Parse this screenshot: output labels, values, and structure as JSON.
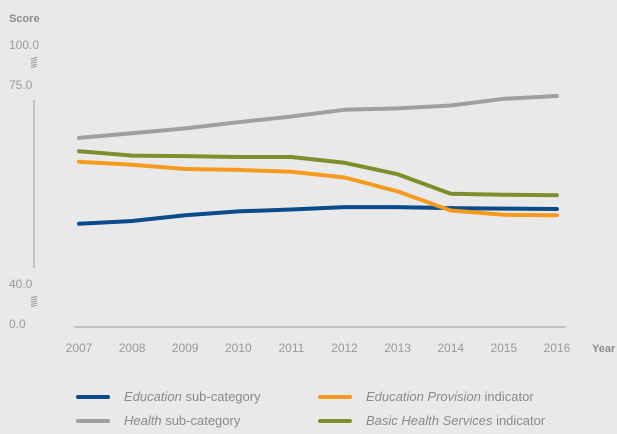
{
  "chart_data": {
    "type": "line",
    "title": "",
    "xlabel": "Year",
    "ylabel": "Score",
    "x": [
      "2007",
      "2008",
      "2009",
      "2010",
      "2011",
      "2012",
      "2013",
      "2014",
      "2015",
      "2016"
    ],
    "y_ticks": [
      "100.0",
      "75.0",
      "40.0",
      "0.0"
    ],
    "y_axis_break": true,
    "ylim_visible": [
      40,
      75
    ],
    "grid": false,
    "legend_position": "bottom",
    "series": [
      {
        "name_em": "Education",
        "name_rest": " sub-category",
        "color": "#0b4a8b",
        "values": [
          48.0,
          48.6,
          49.8,
          50.6,
          51.0,
          51.5,
          51.5,
          51.3,
          51.2,
          51.1
        ]
      },
      {
        "name_em": "Health",
        "name_rest": " sub-category",
        "color": "#a0a0a0",
        "values": [
          66.0,
          67.0,
          68.0,
          69.3,
          70.5,
          71.9,
          72.2,
          72.8,
          74.2,
          74.8
        ]
      },
      {
        "name_em": "Education Provision",
        "name_rest": " indicator",
        "color": "#f49a1e",
        "values": [
          61.0,
          60.4,
          59.5,
          59.3,
          58.9,
          57.7,
          54.8,
          50.8,
          49.9,
          49.8
        ]
      },
      {
        "name_em": "Basic Health Services",
        "name_rest": " indicator",
        "color": "#7b8f2c",
        "values": [
          63.2,
          62.3,
          62.2,
          62.0,
          62.0,
          60.8,
          58.4,
          54.3,
          54.1,
          54.0
        ]
      }
    ]
  }
}
